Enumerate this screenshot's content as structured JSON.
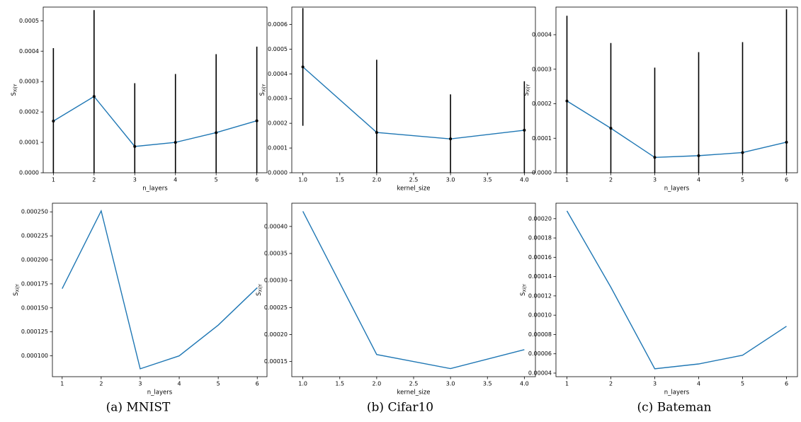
{
  "chart_data": [
    {
      "type": "errorbar",
      "x": [
        1,
        2,
        3,
        4,
        5,
        6
      ],
      "values": [
        0.00017,
        0.000251,
        8.65e-05,
        0.0001,
        0.000132,
        0.000171
      ],
      "errors": [
        0.00024,
        0.000284,
        0.000208,
        0.000225,
        0.000258,
        0.000244
      ],
      "color": "#1f77b4",
      "errorbar_color": "#000000",
      "xlabel": "n_layers",
      "ylabel": "S",
      "ylabel_subscript": "Xi|Y",
      "xlim": [
        0.75,
        6.25
      ],
      "xticks": [
        1,
        2,
        3,
        4,
        5,
        6
      ],
      "ylim": [
        0,
        0.000545
      ],
      "yticks": [
        {
          "value": 0,
          "label": "0.0000"
        },
        {
          "value": 0.0001,
          "label": "0.0001"
        },
        {
          "value": 0.0002,
          "label": "0.0002"
        },
        {
          "value": 0.0003,
          "label": "0.0003"
        },
        {
          "value": 0.0004,
          "label": "0.0004"
        },
        {
          "value": 0.0005,
          "label": "0.0005"
        }
      ]
    },
    {
      "type": "errorbar",
      "x": [
        1,
        2,
        3,
        4
      ],
      "values": [
        0.000428,
        0.000163,
        0.000137,
        0.000172
      ],
      "errors": [
        0.000238,
        0.000294,
        0.00018,
        0.000198
      ],
      "color": "#1f77b4",
      "errorbar_color": "#000000",
      "xlabel": "kernel_size",
      "ylabel": "S",
      "ylabel_subscript": "Xi|Y",
      "xlim": [
        0.85,
        4.15
      ],
      "xticks": [
        {
          "value": 1,
          "label": "1.0"
        },
        {
          "value": 1.5,
          "label": "1.5"
        },
        {
          "value": 2,
          "label": "2.0"
        },
        {
          "value": 2.5,
          "label": "2.5"
        },
        {
          "value": 3,
          "label": "3.0"
        },
        {
          "value": 3.5,
          "label": "3.5"
        },
        {
          "value": 4,
          "label": "4.0"
        }
      ],
      "ylim": [
        0,
        0.00067
      ],
      "yticks": [
        {
          "value": 0,
          "label": "0.0000"
        },
        {
          "value": 0.0001,
          "label": "0.0001"
        },
        {
          "value": 0.0002,
          "label": "0.0002"
        },
        {
          "value": 0.0003,
          "label": "0.0003"
        },
        {
          "value": 0.0004,
          "label": "0.0004"
        },
        {
          "value": 0.0005,
          "label": "0.0005"
        },
        {
          "value": 0.0006,
          "label": "0.0006"
        }
      ]
    },
    {
      "type": "errorbar",
      "x": [
        1,
        2,
        3,
        4,
        5,
        6
      ],
      "values": [
        0.000208,
        0.000129,
        4.45e-05,
        4.95e-05,
        5.85e-05,
        8.85e-05
      ],
      "errors": [
        0.000247,
        0.000247,
        0.00026,
        0.0003,
        0.00032,
        0.000385
      ],
      "color": "#1f77b4",
      "errorbar_color": "#000000",
      "xlabel": "n_layers",
      "ylabel": "S",
      "ylabel_subscript": "Xi|Y",
      "xlim": [
        0.75,
        6.25
      ],
      "xticks": [
        1,
        2,
        3,
        4,
        5,
        6
      ],
      "ylim": [
        0,
        0.00048
      ],
      "yticks": [
        {
          "value": 0,
          "label": "0.0000"
        },
        {
          "value": 0.0001,
          "label": "0.0001"
        },
        {
          "value": 0.0002,
          "label": "0.0002"
        },
        {
          "value": 0.0003,
          "label": "0.0003"
        },
        {
          "value": 0.0004,
          "label": "0.0004"
        }
      ]
    },
    {
      "type": "line",
      "x": [
        1,
        2,
        3,
        4,
        5,
        6
      ],
      "values": [
        0.00017,
        0.000251,
        8.65e-05,
        0.0001,
        0.000132,
        0.000171
      ],
      "color": "#1f77b4",
      "xlabel": "n_layers",
      "ylabel": "S",
      "ylabel_subscript": "Xi|Y",
      "xlim": [
        0.75,
        6.25
      ],
      "xticks": [
        1,
        2,
        3,
        4,
        5,
        6
      ],
      "ylim": [
        7.83e-05,
        0.000259
      ],
      "yticks": [
        {
          "value": 0.0001,
          "label": "0.000100"
        },
        {
          "value": 0.000125,
          "label": "0.000125"
        },
        {
          "value": 0.00015,
          "label": "0.000150"
        },
        {
          "value": 0.000175,
          "label": "0.000175"
        },
        {
          "value": 0.0002,
          "label": "0.000200"
        },
        {
          "value": 0.000225,
          "label": "0.000225"
        },
        {
          "value": 0.00025,
          "label": "0.000250"
        }
      ]
    },
    {
      "type": "line",
      "x": [
        1,
        2,
        3,
        4
      ],
      "values": [
        0.000428,
        0.000163,
        0.000137,
        0.000172
      ],
      "color": "#1f77b4",
      "xlabel": "kernel_size",
      "ylabel": "S",
      "ylabel_subscript": "Xi|Y",
      "xlim": [
        0.85,
        4.15
      ],
      "xticks": [
        {
          "value": 1,
          "label": "1.0"
        },
        {
          "value": 1.5,
          "label": "1.5"
        },
        {
          "value": 2,
          "label": "2.0"
        },
        {
          "value": 2.5,
          "label": "2.5"
        },
        {
          "value": 3,
          "label": "3.0"
        },
        {
          "value": 3.5,
          "label": "3.5"
        },
        {
          "value": 4,
          "label": "4.0"
        }
      ],
      "ylim": [
        0.000122,
        0.000443
      ],
      "yticks": [
        {
          "value": 0.00015,
          "label": "0.00015"
        },
        {
          "value": 0.0002,
          "label": "0.00020"
        },
        {
          "value": 0.00025,
          "label": "0.00025"
        },
        {
          "value": 0.0003,
          "label": "0.00030"
        },
        {
          "value": 0.00035,
          "label": "0.00035"
        },
        {
          "value": 0.0004,
          "label": "0.00040"
        }
      ]
    },
    {
      "type": "line",
      "x": [
        1,
        2,
        3,
        4,
        5,
        6
      ],
      "values": [
        0.000208,
        0.000129,
        4.45e-05,
        4.95e-05,
        5.85e-05,
        8.85e-05
      ],
      "color": "#1f77b4",
      "xlabel": "n_layers",
      "ylabel": "S",
      "ylabel_subscript": "Xi|Y",
      "xlim": [
        0.75,
        6.25
      ],
      "xticks": [
        1,
        2,
        3,
        4,
        5,
        6
      ],
      "ylim": [
        3.63e-05,
        0.000216
      ],
      "yticks": [
        {
          "value": 4e-05,
          "label": "0.00004"
        },
        {
          "value": 6e-05,
          "label": "0.00006"
        },
        {
          "value": 8e-05,
          "label": "0.00008"
        },
        {
          "value": 0.0001,
          "label": "0.00010"
        },
        {
          "value": 0.00012,
          "label": "0.00012"
        },
        {
          "value": 0.00014,
          "label": "0.00014"
        },
        {
          "value": 0.00016,
          "label": "0.00016"
        },
        {
          "value": 0.00018,
          "label": "0.00018"
        },
        {
          "value": 0.0002,
          "label": "0.00020"
        }
      ]
    }
  ],
  "captions": [
    "(a) MNIST",
    "(b) Cifar10",
    "(c) Bateman"
  ]
}
